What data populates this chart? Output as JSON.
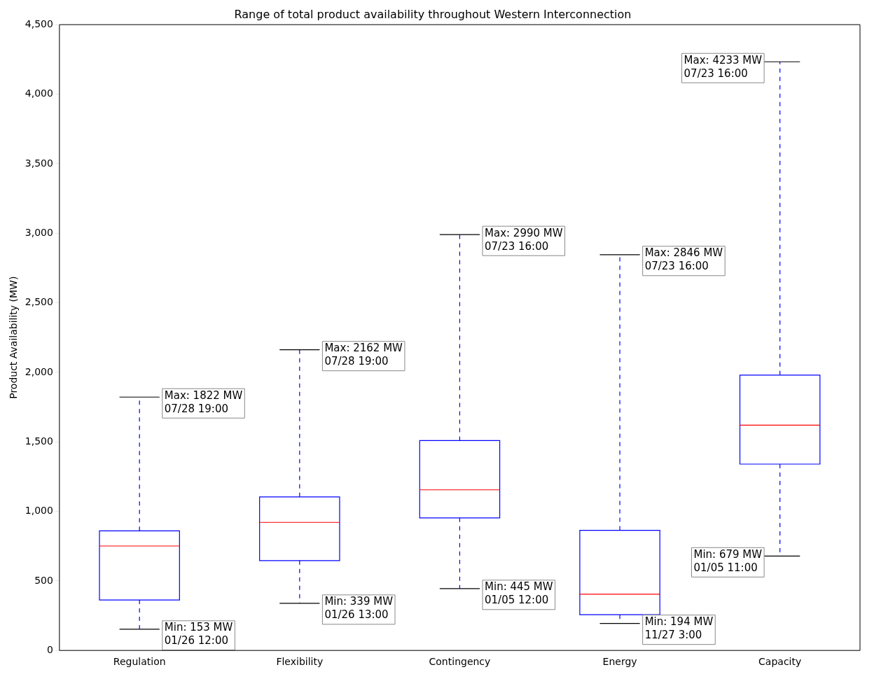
{
  "chart_data": {
    "type": "box",
    "title": "Range of total product availability throughout Western Interconnection",
    "ylabel": "Product Availability (MW)",
    "categories": [
      "Regulation",
      "Flexibility",
      "Contingency",
      "Energy",
      "Capacity"
    ],
    "boxes": [
      {
        "low": 153,
        "q1": 363,
        "median": 751,
        "q3": 860,
        "high": 1822
      },
      {
        "low": 339,
        "q1": 646,
        "median": 921,
        "q3": 1104,
        "high": 2162
      },
      {
        "low": 445,
        "q1": 953,
        "median": 1155,
        "q3": 1509,
        "high": 2990
      },
      {
        "low": 194,
        "q1": 257,
        "median": 404,
        "q3": 864,
        "high": 2846
      },
      {
        "low": 679,
        "q1": 1340,
        "median": 1620,
        "q3": 1980,
        "high": 4233
      }
    ],
    "color": "#0000ff",
    "ylim": [
      0,
      4500
    ],
    "yticks": [
      0,
      500,
      {
        "value": 1000,
        "label": "1,000"
      },
      {
        "value": 1500,
        "label": "1,500"
      },
      {
        "value": 2000,
        "label": "2,000"
      },
      {
        "value": 2500,
        "label": "2,500"
      },
      {
        "value": 3000,
        "label": "3,000"
      },
      {
        "value": 3500,
        "label": "3,500"
      },
      {
        "value": 4000,
        "label": "4,000"
      },
      {
        "value": 4500,
        "label": "4,500"
      }
    ],
    "grid": false,
    "legend": false,
    "annotations": [
      {
        "text": "Max: 1822 MW\n07/28 19:00",
        "x": "Regulation",
        "y": 1822
      },
      {
        "text": "Min: 153 MW\n01/26 12:00",
        "x": "Regulation",
        "y": 153
      },
      {
        "text": "Max: 2162 MW\n07/28 19:00",
        "x": "Flexibility",
        "y": 2162
      },
      {
        "text": "Min: 339 MW\n01/26 13:00",
        "x": "Flexibility",
        "y": 339
      },
      {
        "text": "Max: 2990 MW\n07/23 16:00",
        "x": "Contingency",
        "y": 2990
      },
      {
        "text": "Min: 445 MW\n01/05 12:00",
        "x": "Contingency",
        "y": 445
      },
      {
        "text": "Max: 2846 MW\n07/23 16:00",
        "x": "Energy",
        "y": 2846
      },
      {
        "text": "Min: 194 MW\n11/27 3:00",
        "x": "Energy",
        "y": 194
      },
      {
        "text": "Max: 4233 MW\n07/23 16:00",
        "x": "Capacity",
        "y": 4233
      },
      {
        "text": "Min: 679 MW\n01/05 11:00",
        "x": "Capacity",
        "y": 679
      }
    ]
  }
}
